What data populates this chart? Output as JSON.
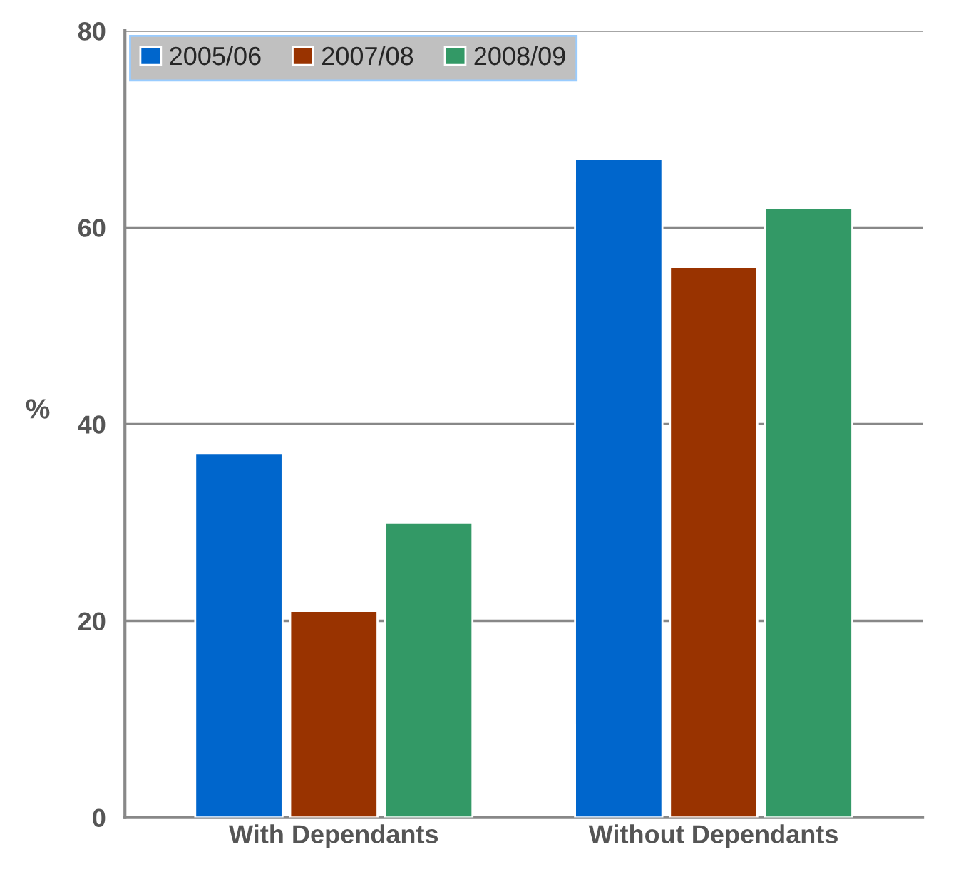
{
  "chart_data": {
    "type": "bar",
    "ylabel": "%",
    "categories": [
      "With Dependants",
      "Without Dependants"
    ],
    "series": [
      {
        "name": "2005/06",
        "color": "#0066cc",
        "values": [
          37,
          67
        ]
      },
      {
        "name": "2007/08",
        "color": "#993300",
        "values": [
          21,
          56
        ]
      },
      {
        "name": "2008/09",
        "color": "#339966",
        "values": [
          30,
          62
        ]
      }
    ],
    "ylim": [
      0,
      80
    ],
    "yticks": [
      0,
      20,
      40,
      60,
      80
    ],
    "grid": "y",
    "legend": "top left"
  }
}
